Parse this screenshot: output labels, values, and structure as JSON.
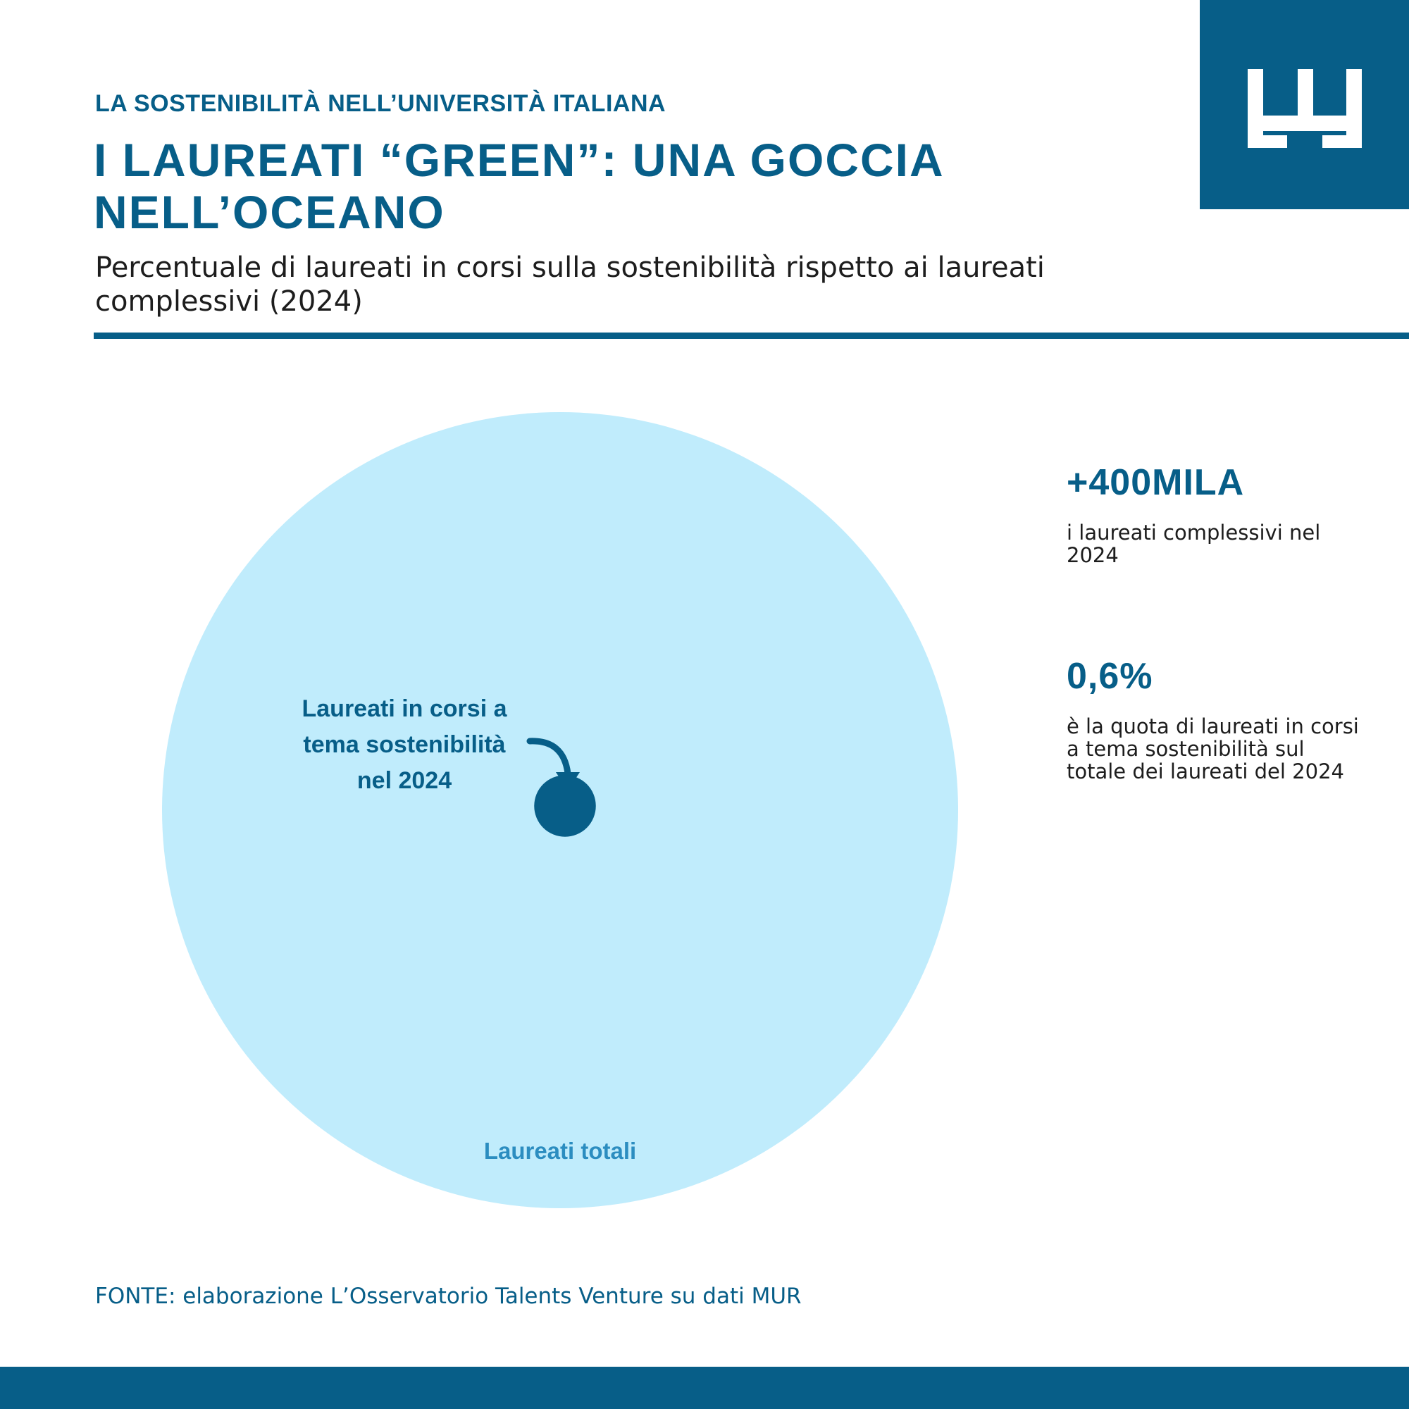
{
  "header": {
    "kicker": "LA SOSTENIBILITÀ NELL’UNIVERSITÀ ITALIANA",
    "title": "I LAUREATI “GREEN”: UNA GOCCIA NELL’OCEANO",
    "subtitle": "Percentuale di laureati in corsi sulla sostenibilità rispetto ai laureati complessivi (2024)"
  },
  "logo": {
    "icon": "crown-logo-icon"
  },
  "chart_data": {
    "type": "area-proportion",
    "title": "I LAUREATI “GREEN”: UNA GOCCIA NELL’OCEANO",
    "series": [
      {
        "name": "Laureati totali",
        "value": 100,
        "color": "#c0ecfc"
      },
      {
        "name": "Laureati in corsi a tema sostenibilità nel 2024",
        "value": 0.6,
        "color": "#075e88"
      }
    ],
    "unit": "%",
    "annotations": {
      "inner_label_lines": [
        "Laureati in  corsi a",
        "tema sostenibilità",
        "nel 2024"
      ],
      "outer_label": "Laureati totali"
    }
  },
  "stats": [
    {
      "value": "+400MILA",
      "description": "i laureati complessivi nel 2024"
    },
    {
      "value": "0,6%",
      "description": "è la quota di laureati in corsi a tema sostenibilità sul totale dei laureati del 2024"
    }
  ],
  "source": "FONTE: elaborazione L’Osservatorio Talents Venture su dati MUR",
  "colors": {
    "primary": "#075e88",
    "circle": "#c0ecfc",
    "outer_label": "#2b8dc0"
  }
}
